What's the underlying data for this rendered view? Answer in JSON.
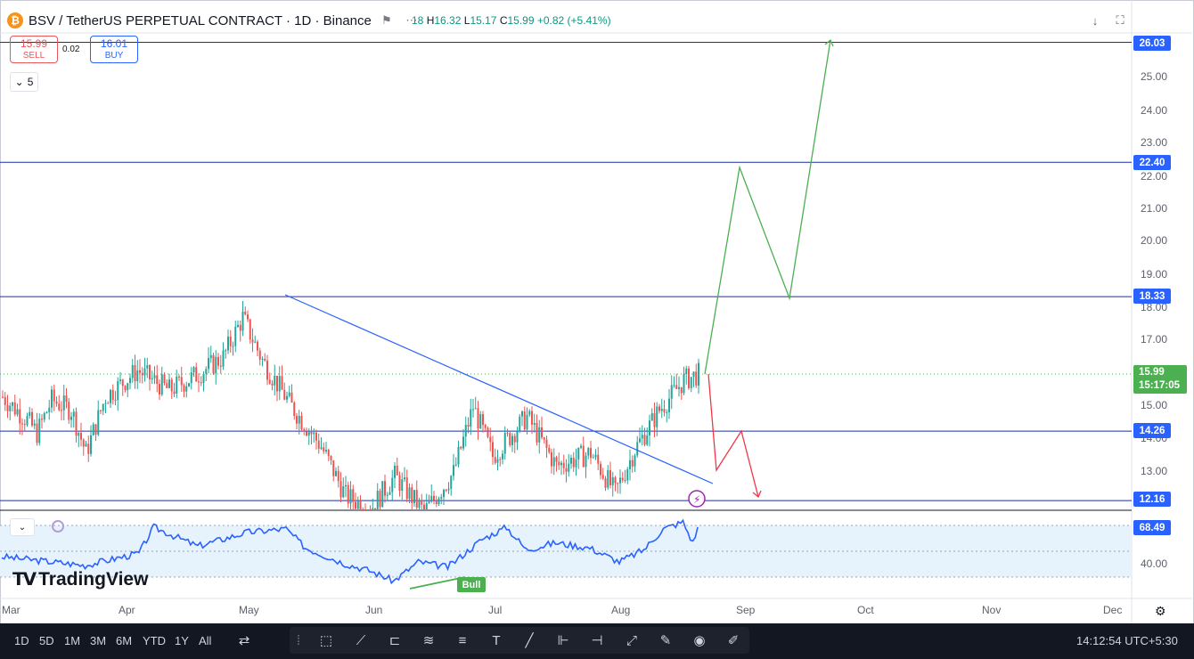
{
  "header": {
    "symbol": "BSV / TetherUS PERPETUAL CONTRACT · 1D · Binance",
    "coin_glyph": "₿",
    "ohlc": {
      "o_tail": "18",
      "h_label": "H",
      "h": "16.32",
      "l_label": "L",
      "l": "15.17",
      "c_label": "C",
      "c": "15.99",
      "change": "+0.82 (+5.41%)"
    }
  },
  "trade": {
    "sell_price": "15.99",
    "sell_label": "SELL",
    "spread": "0.02",
    "buy_price": "16.01",
    "buy_label": "BUY"
  },
  "indicator_toggle": {
    "count": "5"
  },
  "logo": {
    "text": "TradingView"
  },
  "price_axis": {
    "ticks": [
      "25.00",
      "24.00",
      "23.00",
      "22.00",
      "21.00",
      "20.00",
      "19.00",
      "18.00",
      "17.00",
      "15.00",
      "14.00",
      "13.00"
    ],
    "rsi_ticks": [
      "40.00"
    ]
  },
  "levels": {
    "l1": "26.03",
    "l2": "22.40",
    "l3": "18.33",
    "l4": "14.26",
    "l5": "12.16"
  },
  "current": {
    "price": "15.99",
    "countdown": "15:17:05"
  },
  "rsi": {
    "value": "68.49",
    "divergence_label": "Bull"
  },
  "time_axis": [
    "Mar",
    "Apr",
    "May",
    "Jun",
    "Jul",
    "Aug",
    "Sep",
    "Oct",
    "Nov",
    "Dec"
  ],
  "timeframes": [
    "1D",
    "5D",
    "1M",
    "3M",
    "6M",
    "YTD",
    "1Y",
    "All"
  ],
  "clock": "14:12:54 UTC+5:30",
  "colors": {
    "up": "#26a69a",
    "down": "#ef5350",
    "line": "#2962ff",
    "projection_up": "#4caf50",
    "projection_down": "#f23645",
    "rsi": "#2962ff"
  },
  "icons": [
    "compare-icon",
    "fullscreen-icon",
    "download-icon",
    "replay-icon",
    "crosshair-icon",
    "trendline-icon",
    "fib-icon",
    "pattern-icon",
    "text-icon",
    "brush-icon",
    "measure-icon",
    "zoom-icon",
    "eye-icon",
    "settings-icon"
  ],
  "chart_data": {
    "type": "candlestick",
    "y_range": [
      11.5,
      26.5
    ],
    "horizontal_levels": [
      26.03,
      22.4,
      18.33,
      14.26,
      12.16
    ],
    "last_close": 15.99,
    "rsi_last": 68.49
  }
}
